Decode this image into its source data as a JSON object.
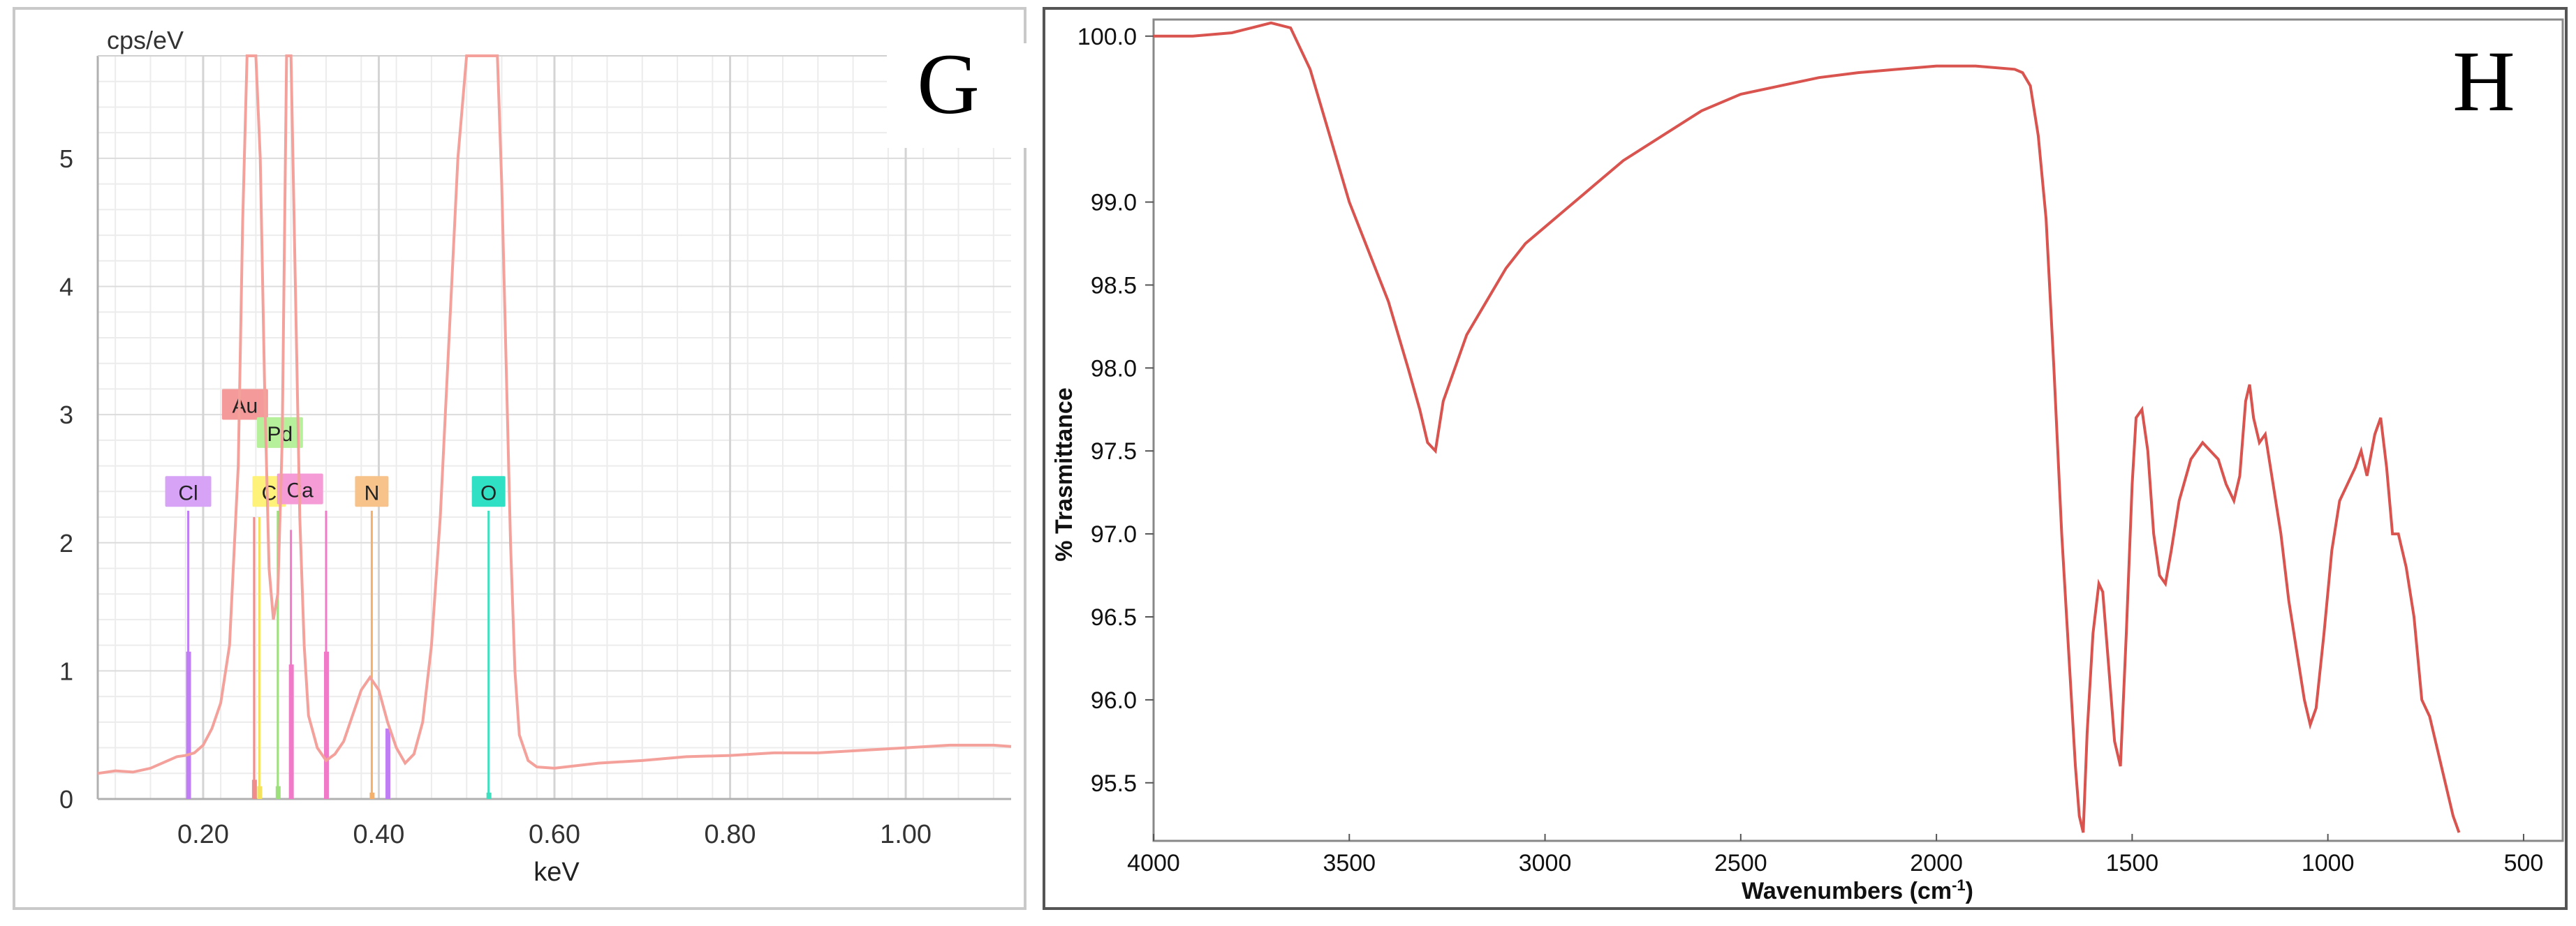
{
  "chart_data": [
    {
      "panel": "G",
      "type": "line",
      "ylabel": "cps/eV",
      "xlabel": "keV",
      "xlim": [
        0.08,
        1.12
      ],
      "ylim": [
        0,
        5.8
      ],
      "xticks": [
        0.2,
        0.4,
        0.6,
        0.8,
        1.0
      ],
      "xtick_labels": [
        "0.20",
        "0.40",
        "0.60",
        "0.80",
        "1.00"
      ],
      "yticks": [
        0,
        1,
        2,
        3,
        4,
        5
      ],
      "ytick_labels": [
        "0",
        "1",
        "2",
        "3",
        "4",
        "5"
      ],
      "grid": true,
      "series": [
        {
          "color": "#f4a19b",
          "x": [
            0.08,
            0.1,
            0.12,
            0.14,
            0.16,
            0.17,
            0.18,
            0.19,
            0.2,
            0.21,
            0.22,
            0.23,
            0.24,
            0.245,
            0.25,
            0.255,
            0.26,
            0.265,
            0.27,
            0.275,
            0.28,
            0.285,
            0.29,
            0.295,
            0.3,
            0.305,
            0.31,
            0.315,
            0.32,
            0.33,
            0.34,
            0.35,
            0.36,
            0.37,
            0.38,
            0.39,
            0.4,
            0.41,
            0.42,
            0.43,
            0.44,
            0.45,
            0.46,
            0.47,
            0.48,
            0.49,
            0.5,
            0.51,
            0.52,
            0.53,
            0.535,
            0.54,
            0.545,
            0.55,
            0.555,
            0.56,
            0.57,
            0.58,
            0.6,
            0.65,
            0.7,
            0.75,
            0.8,
            0.85,
            0.9,
            0.95,
            1.0,
            1.05,
            1.1,
            1.12
          ],
          "y": [
            0.2,
            0.22,
            0.21,
            0.24,
            0.3,
            0.33,
            0.34,
            0.36,
            0.42,
            0.55,
            0.75,
            1.2,
            2.6,
            4.5,
            5.8,
            5.8,
            5.8,
            5.0,
            3.2,
            1.8,
            1.4,
            1.6,
            2.8,
            5.8,
            5.8,
            4.0,
            2.2,
            1.2,
            0.65,
            0.4,
            0.3,
            0.35,
            0.45,
            0.65,
            0.85,
            0.95,
            0.85,
            0.6,
            0.4,
            0.28,
            0.35,
            0.6,
            1.2,
            2.2,
            3.6,
            5.0,
            5.8,
            5.8,
            5.8,
            5.8,
            5.8,
            4.8,
            3.4,
            2.0,
            1.0,
            0.5,
            0.3,
            0.25,
            0.24,
            0.28,
            0.3,
            0.33,
            0.34,
            0.36,
            0.36,
            0.38,
            0.4,
            0.42,
            0.42,
            0.41
          ]
        }
      ],
      "element_lines": [
        {
          "element": "Cl",
          "x": 0.183,
          "bar_top": 2.25,
          "bar_color": "#c07ef5",
          "box_color": "#d7a3f7",
          "height": 1.15
        },
        {
          "element": "Au",
          "x": 0.258,
          "bar_top": 2.2,
          "bar_color": "#f08c8c",
          "box_color": "#f59a9a",
          "height": 0.15
        },
        {
          "element": "C",
          "x": 0.264,
          "bar_top": 2.2,
          "bar_color": "#f5e25c",
          "box_color": "#fff27a",
          "height": 0.1
        },
        {
          "element": "Pd",
          "x": 0.285,
          "bar_top": 2.25,
          "bar_color": "#9be07a",
          "box_color": "#b6f09a",
          "height": 0.1
        },
        {
          "element": "Ca",
          "x": 0.3,
          "bar_top": 2.1,
          "bar_color": "#f07ac8",
          "box_color": "#f59bd6",
          "height": 1.05
        },
        {
          "element": "",
          "x": 0.34,
          "bar_top": 2.25,
          "bar_color": "#f07ac8",
          "box_color": "#f59bd6",
          "height": 1.15
        },
        {
          "element": "N",
          "x": 0.392,
          "bar_top": 2.25,
          "bar_color": "#f5b06a",
          "box_color": "#f8c38a",
          "height": 0.05
        },
        {
          "element": "",
          "x": 0.41,
          "bar_top": 0.55,
          "bar_color": "#c07ef5",
          "box_color": "#d7a3f7",
          "height": 0.55
        },
        {
          "element": "O",
          "x": 0.525,
          "bar_top": 2.25,
          "bar_color": "#3ee0c0",
          "box_color": "#2fe0c4",
          "height": 0.05
        }
      ]
    },
    {
      "panel": "H",
      "type": "line",
      "ylabel": "% Trasmittance",
      "xlabel": "Wavenumbers (cm",
      "xlabel_sup": "-1",
      "xlabel_close": ")",
      "xlim": [
        4000,
        400
      ],
      "x_reversed": true,
      "ylim": [
        95.15,
        100.1
      ],
      "xticks": [
        4000,
        3500,
        3000,
        2500,
        2000,
        1500,
        1000,
        500
      ],
      "xtick_labels": [
        "4000",
        "3500",
        "3000",
        "2500",
        "2000",
        "1500",
        "1000",
        "500"
      ],
      "yticks": [
        95.5,
        96.0,
        96.5,
        97.0,
        97.5,
        98.0,
        98.5,
        99.0,
        100.0
      ],
      "ytick_labels": [
        "95.5",
        "96.0",
        "96.5",
        "97.0",
        "97.5",
        "98.0",
        "98.5",
        "99.0",
        "100.0"
      ],
      "grid": false,
      "series": [
        {
          "color": "#d9534f",
          "x": [
            4000,
            3900,
            3800,
            3750,
            3700,
            3650,
            3600,
            3550,
            3500,
            3450,
            3400,
            3350,
            3320,
            3300,
            3280,
            3260,
            3230,
            3200,
            3150,
            3100,
            3050,
            3000,
            2950,
            2900,
            2850,
            2800,
            2700,
            2600,
            2500,
            2400,
            2300,
            2200,
            2100,
            2000,
            1900,
            1800,
            1780,
            1760,
            1740,
            1720,
            1700,
            1680,
            1660,
            1645,
            1635,
            1625,
            1615,
            1600,
            1585,
            1575,
            1560,
            1545,
            1530,
            1515,
            1500,
            1490,
            1475,
            1460,
            1445,
            1430,
            1415,
            1400,
            1380,
            1350,
            1320,
            1300,
            1280,
            1260,
            1240,
            1225,
            1210,
            1200,
            1190,
            1175,
            1160,
            1140,
            1120,
            1100,
            1080,
            1060,
            1045,
            1030,
            1010,
            990,
            970,
            950,
            930,
            915,
            900,
            880,
            865,
            850,
            835,
            820,
            800,
            780,
            760,
            740,
            720,
            700,
            680,
            665
          ],
          "y": [
            100.0,
            100.0,
            100.02,
            100.05,
            100.08,
            100.05,
            99.8,
            99.4,
            99.0,
            98.7,
            98.4,
            98.0,
            97.75,
            97.55,
            97.5,
            97.8,
            98.0,
            98.2,
            98.4,
            98.6,
            98.75,
            98.85,
            98.95,
            99.05,
            99.15,
            99.25,
            99.4,
            99.55,
            99.65,
            99.7,
            99.75,
            99.78,
            99.8,
            99.82,
            99.82,
            99.8,
            99.78,
            99.7,
            99.4,
            98.9,
            98.0,
            97.0,
            96.2,
            95.6,
            95.3,
            95.2,
            95.8,
            96.4,
            96.7,
            96.65,
            96.2,
            95.75,
            95.6,
            96.4,
            97.3,
            97.7,
            97.75,
            97.5,
            97.0,
            96.75,
            96.7,
            96.9,
            97.2,
            97.45,
            97.55,
            97.5,
            97.45,
            97.3,
            97.2,
            97.35,
            97.8,
            97.9,
            97.7,
            97.55,
            97.6,
            97.3,
            97.0,
            96.6,
            96.3,
            96.0,
            95.85,
            95.95,
            96.4,
            96.9,
            97.2,
            97.3,
            97.4,
            97.5,
            97.35,
            97.6,
            97.7,
            97.4,
            97.0,
            97.0,
            96.8,
            96.5,
            96.0,
            95.9,
            95.7,
            95.5,
            95.3,
            95.2
          ]
        }
      ]
    }
  ],
  "panel_labels": {
    "g": "G",
    "h": "H"
  }
}
